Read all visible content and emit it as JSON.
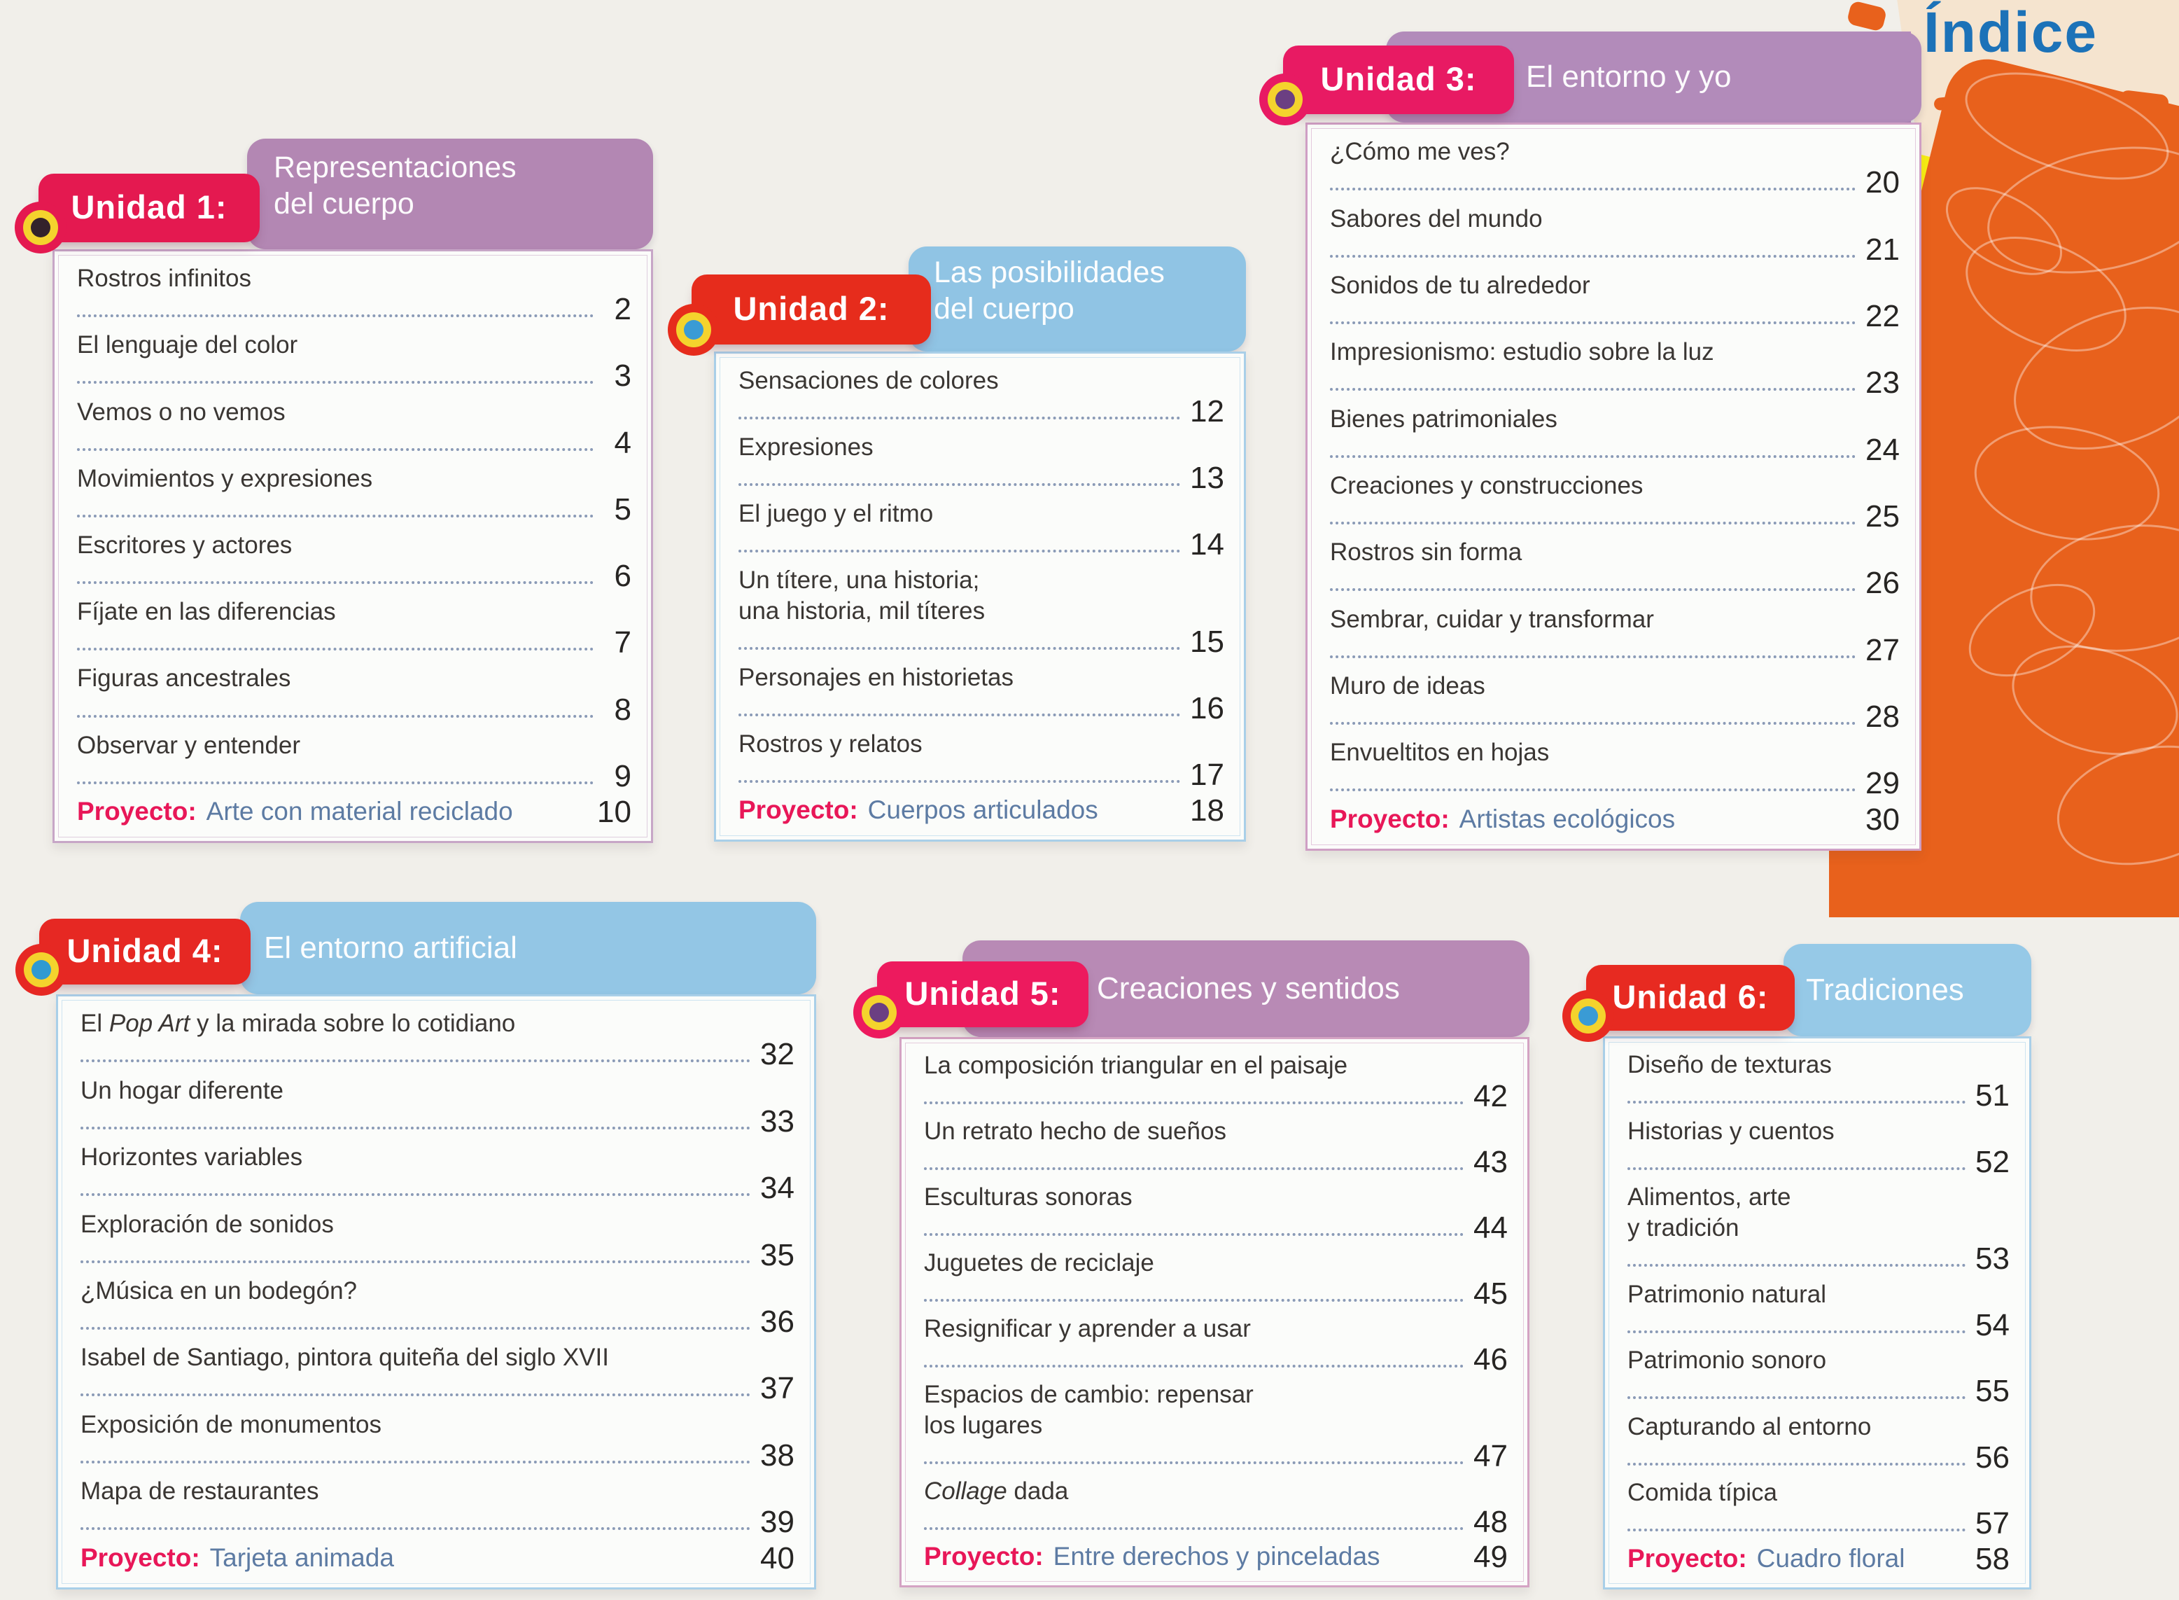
{
  "page_title": "Índice",
  "decor": {
    "title_color": "#1c72b8",
    "orange": "#e8611c",
    "yellow": "#f8ee12",
    "purple_patch": "#b78cc1",
    "project_prefix_color": "#e81758",
    "project_label_color": "#5d7ba3",
    "leader_dots_color": "#8a9ab6"
  },
  "units": [
    {
      "tab": "Unidad 1:",
      "title_lines": [
        "Representaciones",
        "del cuerpo"
      ],
      "theme": {
        "tab": "#e41950",
        "header": "#b387b3",
        "border": "#c7a6c7",
        "icon_inner": "#33222b"
      },
      "entries": [
        {
          "lines": [
            [
              {
                "t": "Rostros infinitos"
              }
            ]
          ],
          "page": "2"
        },
        {
          "lines": [
            [
              {
                "t": "El lenguaje del color"
              }
            ]
          ],
          "page": "3"
        },
        {
          "lines": [
            [
              {
                "t": "Vemos o no vemos"
              }
            ]
          ],
          "page": "4"
        },
        {
          "lines": [
            [
              {
                "t": "Movimientos y expresiones"
              }
            ]
          ],
          "page": "5"
        },
        {
          "lines": [
            [
              {
                "t": "Escritores y actores"
              }
            ]
          ],
          "page": "6"
        },
        {
          "lines": [
            [
              {
                "t": "Fíjate en las diferencias"
              }
            ]
          ],
          "page": "7"
        },
        {
          "lines": [
            [
              {
                "t": "Figuras ancestrales"
              }
            ]
          ],
          "page": "8"
        },
        {
          "lines": [
            [
              {
                "t": "Observar y entender"
              }
            ]
          ],
          "page": "9"
        }
      ],
      "project": {
        "prefix": "Proyecto:",
        "lines": [
          [
            {
              "t": "Arte con material reciclado"
            }
          ]
        ],
        "page": "10"
      }
    },
    {
      "tab": "Unidad 2:",
      "title_lines": [
        "Las posibilidades",
        "del cuerpo"
      ],
      "theme": {
        "tab": "#e62c1c",
        "header": "#90c4e4",
        "border": "#a9cfe8",
        "icon_inner": "#3a9bd5"
      },
      "entries": [
        {
          "lines": [
            [
              {
                "t": "Sensaciones de colores"
              }
            ]
          ],
          "page": "12"
        },
        {
          "lines": [
            [
              {
                "t": "Expresiones"
              }
            ]
          ],
          "page": "13"
        },
        {
          "lines": [
            [
              {
                "t": "El juego y el ritmo"
              }
            ]
          ],
          "page": "14"
        },
        {
          "lines": [
            [
              {
                "t": "Un títere, una historia;"
              }
            ],
            [
              {
                "t": "una historia, mil títeres"
              }
            ]
          ],
          "page": "15"
        },
        {
          "lines": [
            [
              {
                "t": "Personajes en historietas"
              }
            ]
          ],
          "page": "16"
        },
        {
          "lines": [
            [
              {
                "t": "Rostros y relatos"
              }
            ]
          ],
          "page": "17"
        }
      ],
      "project": {
        "prefix": "Proyecto:",
        "lines": [
          [
            {
              "t": "Cuerpos articulados"
            }
          ]
        ],
        "page": "18"
      }
    },
    {
      "tab": "Unidad 3:",
      "title_lines": [
        "El entorno y yo"
      ],
      "theme": {
        "tab": "#e81a63",
        "header": "#b28bba",
        "border": "#cf9fc4",
        "icon_inner": "#6b3f82"
      },
      "entries": [
        {
          "lines": [
            [
              {
                "t": "¿Cómo me ves?"
              }
            ]
          ],
          "page": "20"
        },
        {
          "lines": [
            [
              {
                "t": "Sabores del mundo"
              }
            ]
          ],
          "page": "21"
        },
        {
          "lines": [
            [
              {
                "t": "Sonidos de tu alrededor"
              }
            ]
          ],
          "page": "22"
        },
        {
          "lines": [
            [
              {
                "t": "Impresionismo: estudio sobre la luz"
              }
            ]
          ],
          "page": "23"
        },
        {
          "lines": [
            [
              {
                "t": "Bienes patrimoniales"
              }
            ]
          ],
          "page": "24"
        },
        {
          "lines": [
            [
              {
                "t": "Creaciones y construcciones"
              }
            ]
          ],
          "page": "25"
        },
        {
          "lines": [
            [
              {
                "t": "Rostros sin forma"
              }
            ]
          ],
          "page": "26"
        },
        {
          "lines": [
            [
              {
                "t": "Sembrar, cuidar y transformar"
              }
            ]
          ],
          "page": "27"
        },
        {
          "lines": [
            [
              {
                "t": "Muro de ideas"
              }
            ]
          ],
          "page": "28"
        },
        {
          "lines": [
            [
              {
                "t": "Envueltitos en hojas"
              }
            ]
          ],
          "page": "29"
        }
      ],
      "project": {
        "prefix": "Proyecto:",
        "lines": [
          [
            {
              "t": "Artistas ecológicos"
            }
          ]
        ],
        "page": "30"
      }
    },
    {
      "tab": "Unidad 4:",
      "title_lines": [
        "El entorno artificial"
      ],
      "theme": {
        "tab": "#e62823",
        "header": "#93c6e5",
        "border": "#a9cfe8",
        "icon_inner": "#2f9ad2"
      },
      "entries": [
        {
          "lines": [
            [
              {
                "t": "El "
              },
              {
                "t": "Pop Art",
                "i": true
              },
              {
                "t": " y la mirada sobre lo cotidiano"
              }
            ]
          ],
          "page": "32"
        },
        {
          "lines": [
            [
              {
                "t": "Un hogar diferente"
              }
            ]
          ],
          "page": "33"
        },
        {
          "lines": [
            [
              {
                "t": "Horizontes variables"
              }
            ]
          ],
          "page": "34"
        },
        {
          "lines": [
            [
              {
                "t": "Exploración de sonidos"
              }
            ]
          ],
          "page": "35"
        },
        {
          "lines": [
            [
              {
                "t": "¿Música en un bodegón?"
              }
            ]
          ],
          "page": "36"
        },
        {
          "lines": [
            [
              {
                "t": "Isabel de Santiago, pintora quiteña del siglo XVII"
              }
            ]
          ],
          "page": "37"
        },
        {
          "lines": [
            [
              {
                "t": "Exposición de monumentos"
              }
            ]
          ],
          "page": "38"
        },
        {
          "lines": [
            [
              {
                "t": "Mapa de restaurantes"
              }
            ]
          ],
          "page": "39"
        }
      ],
      "project": {
        "prefix": "Proyecto:",
        "lines": [
          [
            {
              "t": "Tarjeta animada"
            }
          ]
        ],
        "page": "40"
      }
    },
    {
      "tab": "Unidad 5:",
      "title_lines": [
        "Creaciones y sentidos"
      ],
      "theme": {
        "tab": "#ed1a5e",
        "header": "#b88ab5",
        "border": "#d4a3c3",
        "icon_inner": "#6b3f82"
      },
      "entries": [
        {
          "lines": [
            [
              {
                "t": "La composición triangular en el paisaje"
              }
            ]
          ],
          "page": "42"
        },
        {
          "lines": [
            [
              {
                "t": "Un retrato hecho de sueños"
              }
            ]
          ],
          "page": "43"
        },
        {
          "lines": [
            [
              {
                "t": "Esculturas sonoras"
              }
            ]
          ],
          "page": "44"
        },
        {
          "lines": [
            [
              {
                "t": "Juguetes de reciclaje"
              }
            ]
          ],
          "page": "45"
        },
        {
          "lines": [
            [
              {
                "t": "Resignificar y aprender a usar"
              }
            ]
          ],
          "page": "46"
        },
        {
          "lines": [
            [
              {
                "t": "Espacios de cambio: repensar"
              }
            ],
            [
              {
                "t": "los lugares"
              }
            ]
          ],
          "page": "47"
        },
        {
          "lines": [
            [
              {
                "t": "Collage",
                "i": true
              },
              {
                "t": " dada"
              }
            ]
          ],
          "page": "48"
        }
      ],
      "project": {
        "prefix": "Proyecto:",
        "lines": [
          [
            {
              "t": "Entre derechos y pinceladas"
            }
          ]
        ],
        "page": "49"
      }
    },
    {
      "tab": "Unidad 6:",
      "title_lines": [
        "Tradiciones"
      ],
      "theme": {
        "tab": "#e72a21",
        "header": "#96c9e7",
        "border": "#a9cfe8",
        "icon_inner": "#3a9bd5"
      },
      "entries": [
        {
          "lines": [
            [
              {
                "t": "Diseño de texturas"
              }
            ]
          ],
          "page": "51"
        },
        {
          "lines": [
            [
              {
                "t": "Historias y cuentos"
              }
            ]
          ],
          "page": "52"
        },
        {
          "lines": [
            [
              {
                "t": "Alimentos, arte"
              }
            ],
            [
              {
                "t": "y tradición"
              }
            ]
          ],
          "page": "53"
        },
        {
          "lines": [
            [
              {
                "t": "Patrimonio natural"
              }
            ]
          ],
          "page": "54"
        },
        {
          "lines": [
            [
              {
                "t": "Patrimonio sonoro"
              }
            ]
          ],
          "page": "55"
        },
        {
          "lines": [
            [
              {
                "t": "Capturando al entorno"
              }
            ]
          ],
          "page": "56"
        },
        {
          "lines": [
            [
              {
                "t": "Comida típica"
              }
            ]
          ],
          "page": "57"
        }
      ],
      "project": {
        "prefix": "Proyecto:",
        "lines": [
          [
            {
              "t": "Cuadro floral"
            }
          ]
        ],
        "page": "58"
      }
    }
  ]
}
